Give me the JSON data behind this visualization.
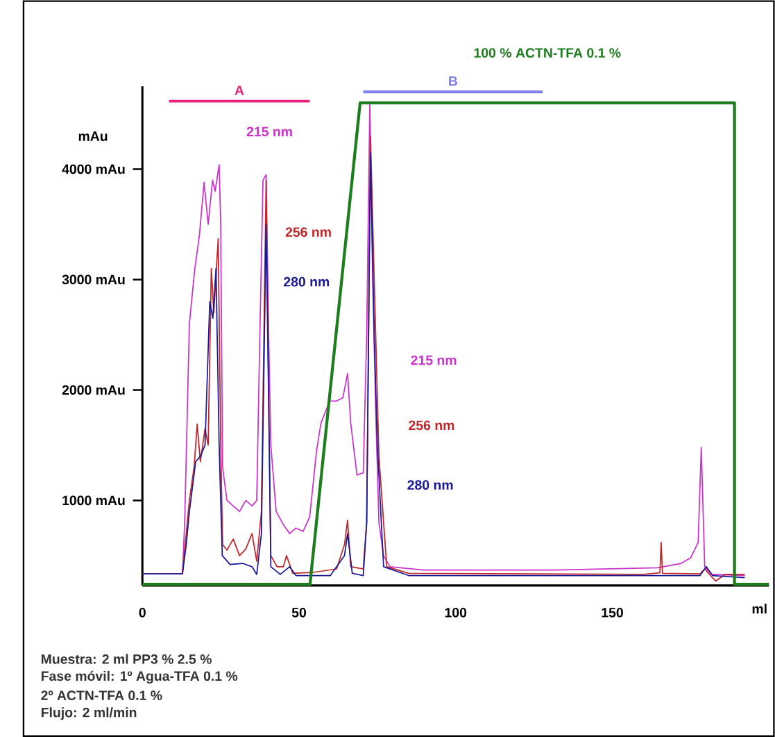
{
  "chart_data": {
    "type": "line",
    "xlabel": "ml",
    "ylabel": "mAu",
    "xlim": [
      0,
      200
    ],
    "ylim": [
      230,
      4750
    ],
    "xticks": [
      0,
      50,
      100,
      150
    ],
    "yticks": [
      {
        "value": 1000,
        "label": "1000 mAu"
      },
      {
        "value": 2000,
        "label": "2000 mAu"
      },
      {
        "value": 3000,
        "label": "3000 mAu"
      },
      {
        "value": 4000,
        "label": "4000 mAu"
      }
    ],
    "series": [
      {
        "color": "#cc33cc",
        "x": [
          0,
          12.8,
          13.5,
          15,
          16.7,
          18.2,
          19.7,
          21,
          22.4,
          23.2,
          24.5,
          25,
          25.6,
          27,
          29,
          31,
          33,
          35,
          36.5,
          37.5,
          38.5,
          39.5,
          40.3,
          41,
          42.7,
          45,
          47,
          49,
          51.3,
          53.4,
          55.6,
          57,
          59.8,
          62,
          64,
          65.5,
          66.5,
          68.5,
          70.5,
          71.6,
          72.6,
          73.5,
          74.5,
          75.5,
          77,
          79,
          89.7,
          132,
          164.5,
          172,
          175,
          177.4,
          178.4,
          179.5,
          181.6,
          192.3
        ],
        "values": [
          335,
          335,
          800,
          2600,
          3090,
          3400,
          3880,
          3500,
          3900,
          3800,
          4040,
          3500,
          1300,
          1000,
          950,
          900,
          1000,
          950,
          1000,
          2500,
          3900,
          3950,
          2500,
          1500,
          900,
          780,
          700,
          750,
          720,
          850,
          1450,
          1700,
          1900,
          1900,
          1930,
          2150,
          1700,
          1230,
          1250,
          2500,
          4600,
          3000,
          1800,
          800,
          500,
          400,
          370,
          370,
          390,
          430,
          480,
          620,
          1480,
          400,
          330,
          320
        ]
      },
      {
        "color": "#c0262a",
        "x": [
          0,
          12.8,
          14,
          15,
          16.5,
          17.5,
          18.5,
          20,
          21,
          22,
          22.8,
          24.2,
          25,
          25.6,
          27,
          29,
          31,
          33,
          35,
          36.5,
          38,
          39.5,
          40.5,
          41,
          43,
          45,
          46,
          47,
          48,
          55,
          62,
          64.5,
          65.5,
          66.5,
          70.5,
          71.6,
          72.8,
          74,
          75.5,
          78,
          85,
          160,
          165.2,
          165.6,
          166,
          178,
          179.5,
          182,
          183,
          186,
          192.3
        ],
        "values": [
          335,
          335,
          700,
          1000,
          1300,
          1690,
          1350,
          1650,
          1500,
          3100,
          2700,
          3370,
          1500,
          600,
          550,
          650,
          500,
          560,
          700,
          450,
          900,
          3900,
          1500,
          500,
          400,
          400,
          500,
          420,
          340,
          350,
          380,
          600,
          820,
          400,
          380,
          800,
          4300,
          3000,
          1400,
          400,
          340,
          330,
          345,
          620,
          340,
          335,
          380,
          300,
          270,
          330,
          330
        ]
      },
      {
        "color": "#1a1a99",
        "x": [
          0,
          12.8,
          14,
          15,
          17,
          18.5,
          20,
          21.5,
          22.5,
          23.5,
          24.5,
          25.5,
          28,
          32,
          35,
          36.5,
          38,
          39.5,
          40.5,
          41,
          44,
          47,
          49,
          60,
          64.5,
          65.5,
          67,
          70.5,
          71.6,
          72.8,
          74,
          75,
          77,
          85,
          178,
          180,
          182,
          192.3
        ],
        "values": [
          335,
          335,
          600,
          900,
          1350,
          1400,
          1500,
          2800,
          2650,
          3100,
          1500,
          500,
          420,
          430,
          400,
          330,
          700,
          3500,
          1500,
          400,
          330,
          400,
          320,
          320,
          500,
          700,
          340,
          320,
          800,
          4150,
          2500,
          1500,
          400,
          320,
          320,
          400,
          320,
          300
        ]
      },
      {
        "name": "100 % ACTN-TFA 0.1 %",
        "color": "#1e7d1e",
        "x": [
          0,
          53.5,
          69.5,
          189,
          189,
          200
        ],
        "values": [
          240,
          240,
          4600,
          4600,
          240,
          240
        ]
      },
      {
        "name": "A",
        "color": "#e8207a",
        "x": [
          8.5,
          53.4
        ],
        "values": [
          4616,
          4616
        ]
      },
      {
        "name": "B",
        "color": "#8080ee",
        "x": [
          70.5,
          127.8
        ],
        "values": [
          4700,
          4700
        ]
      }
    ],
    "annotations": [
      "215 nm",
      "215 nm",
      "256 nm",
      "256 nm",
      "280 nm",
      "280 nm",
      "Muestra: 2 ml  PP3 % 2.5 %",
      "Fase móvil: 1º Agua-TFA 0.1 %",
      "2º ACTN-TFA 0.1 %",
      "Flujo: 2 ml/min"
    ]
  }
}
